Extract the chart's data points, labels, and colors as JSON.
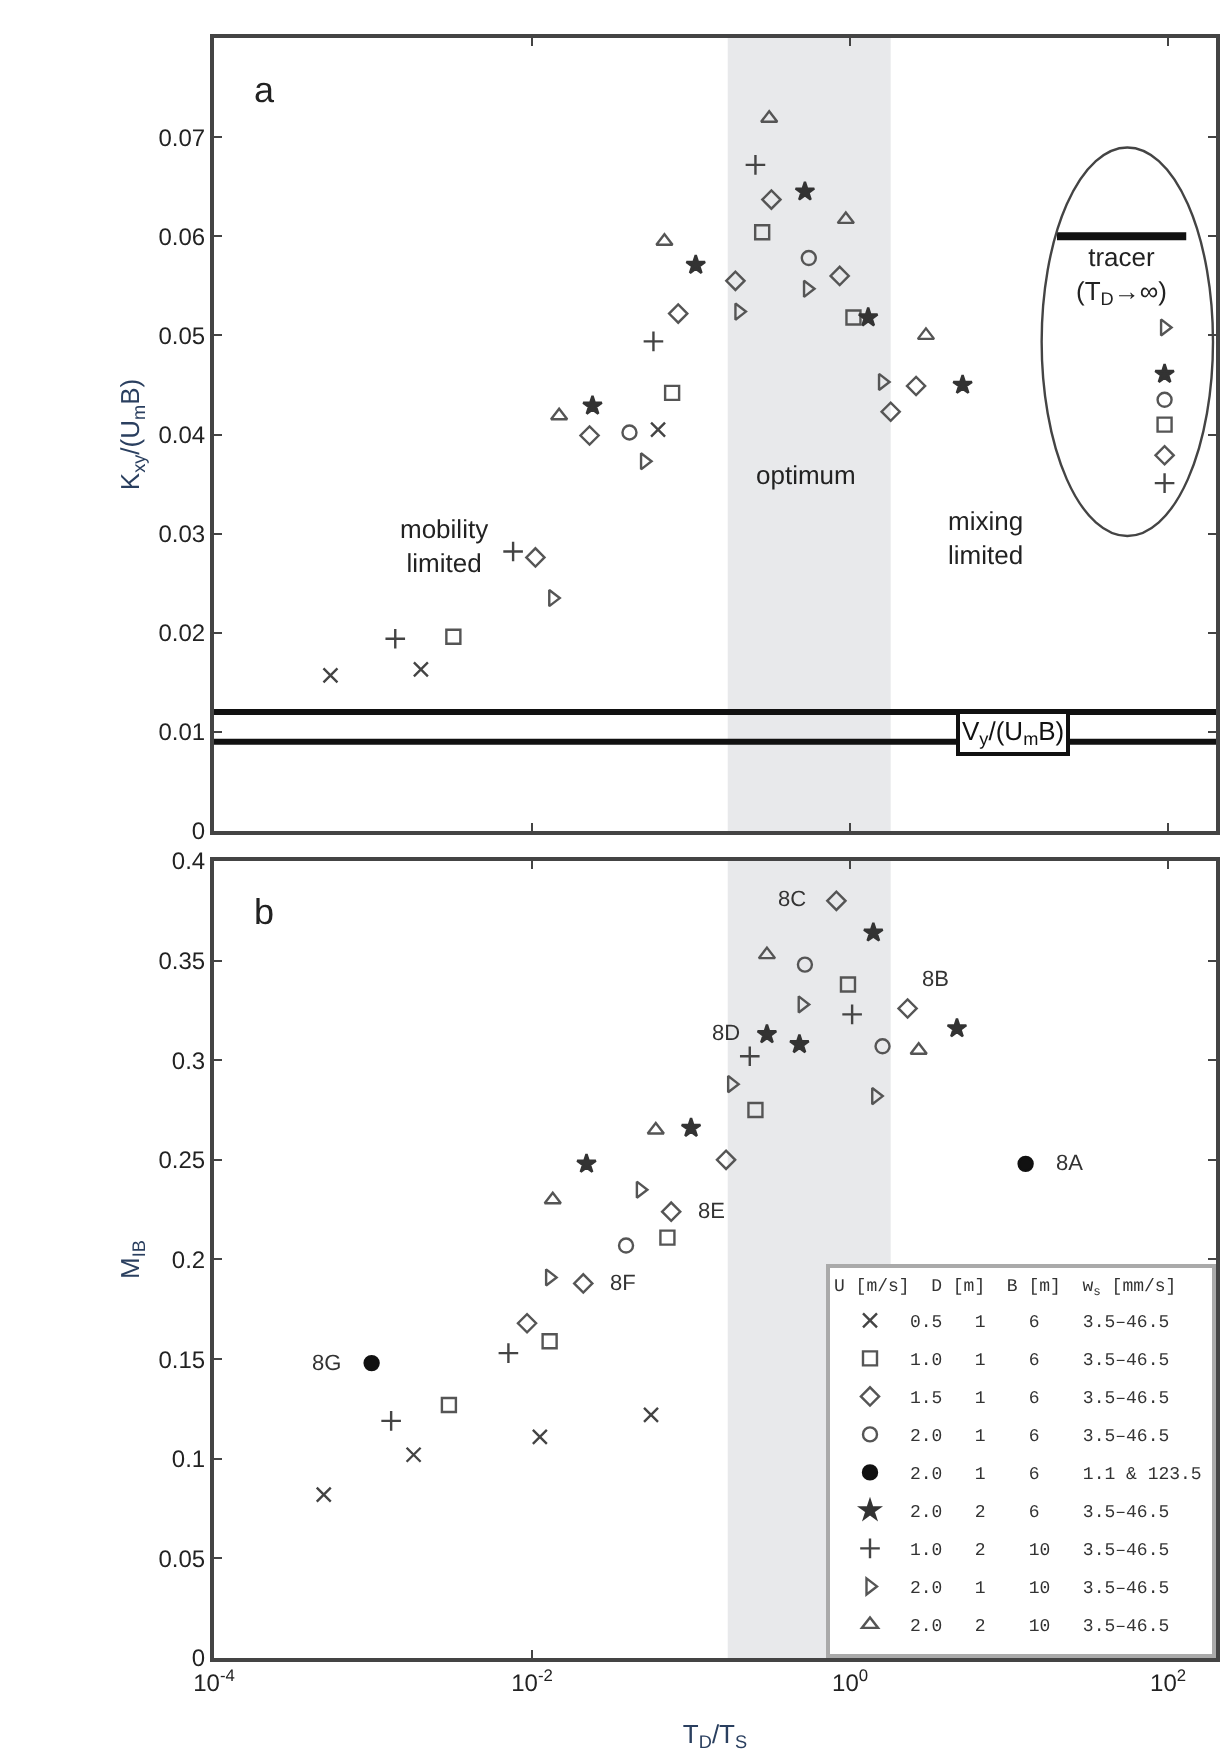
{
  "chart_data": [
    {
      "type": "scatter",
      "ylabel": "K$_{xy}$/(U$_{m}$B)",
      "xlim": [
        0.0001,
        200
      ],
      "xticks": [
        {
          "value": 0.0001,
          "label": "10$^{-4}$"
        },
        {
          "value": 0.01,
          "label": "10$^{-2}$"
        },
        {
          "value": 1,
          "label": "10$^{0}$"
        },
        {
          "value": 100,
          "label": "10$^{2}$"
        }
      ],
      "log": "x",
      "ylim": [
        0,
        0.08
      ],
      "yticks": [
        0,
        0.01,
        0.02,
        0.03,
        0.04,
        0.05,
        0.06,
        0.07
      ],
      "tick_labels": "y",
      "grid": false,
      "legend": false,
      "bands": [
        {
          "axis": "x",
          "from": 0.17,
          "to": 1.8,
          "color": "#e8e9eb"
        }
      ],
      "ref_lines": [
        {
          "axis": "y",
          "value": 0.012,
          "color": "#111111"
        },
        {
          "axis": "y",
          "value": 0.009,
          "color": "#111111",
          "label": "V$_{y}$/(U$_{m}$B)"
        }
      ],
      "annotations": [
        "a",
        "mobility\nlimited",
        "optimum",
        "mixing\nlimited",
        "tracer\n(T$_{D}$→∞)"
      ],
      "series": [
        {
          "type": "scatter",
          "marker": "x",
          "color": "#444444",
          "x": [
            0.00054,
            0.002,
            0.062
          ],
          "values": [
            0.0157,
            0.0163,
            0.0405
          ]
        },
        {
          "type": "scatter",
          "marker": "square",
          "color": "#555555",
          "x": [
            0.0032,
            0.076,
            0.28,
            1.05,
            95
          ],
          "values": [
            0.0196,
            0.0442,
            0.0604,
            0.0518,
            0.041
          ]
        },
        {
          "type": "scatter",
          "marker": "diamond",
          "color": "#555555",
          "x": [
            0.0105,
            0.023,
            0.083,
            0.19,
            0.32,
            0.86,
            1.8,
            2.6,
            95
          ],
          "values": [
            0.0276,
            0.0399,
            0.0522,
            0.0555,
            0.0637,
            0.056,
            0.0423,
            0.0449,
            0.0379
          ]
        },
        {
          "type": "scatter",
          "marker": "circle",
          "color": "#555555",
          "x": [
            0.041,
            0.55,
            95
          ],
          "values": [
            0.0402,
            0.0578,
            0.0435
          ]
        },
        {
          "type": "scatter",
          "marker": "star",
          "color": "#333333",
          "x": [
            0.024,
            0.107,
            0.52,
            1.3,
            5.1,
            95
          ],
          "values": [
            0.0429,
            0.0571,
            0.0645,
            0.0518,
            0.045,
            0.0461
          ]
        },
        {
          "type": "scatter",
          "marker": "cross",
          "color": "#444444",
          "x": [
            0.00138,
            0.0076,
            0.058,
            0.254,
            95
          ],
          "values": [
            0.0194,
            0.0282,
            0.0494,
            0.0672,
            0.0351
          ]
        },
        {
          "type": "scatter",
          "marker": "triangle-right",
          "color": "#555555",
          "x": [
            0.0135,
            0.051,
            0.2,
            0.54,
            1.6,
            95
          ],
          "values": [
            0.0235,
            0.0373,
            0.0524,
            0.0547,
            0.0453,
            0.0508
          ]
        },
        {
          "type": "scatter",
          "marker": "triangle",
          "color": "#555555",
          "x": [
            0.0148,
            0.068,
            0.31,
            0.94,
            3.0
          ],
          "values": [
            0.0419,
            0.0595,
            0.0719,
            0.0617,
            0.05
          ]
        },
        {
          "type": "line",
          "marker": "none",
          "color": "#111111",
          "x": [
            20,
            130
          ],
          "values": [
            0.06,
            0.06
          ]
        }
      ]
    },
    {
      "type": "scatter",
      "xlabel": "T$_{D}$/T$_{S}$",
      "ylabel": "M$_{IB}$",
      "xlim": [
        0.0001,
        200
      ],
      "xticks": [
        {
          "value": 0.0001,
          "label": "10$^{-4}$"
        },
        {
          "value": 0.01,
          "label": "10$^{-2}$"
        },
        {
          "value": 1,
          "label": "10$^{0}$"
        },
        {
          "value": 100,
          "label": "10$^{2}$"
        }
      ],
      "log": "x",
      "ylim": [
        0,
        0.4
      ],
      "yticks": [
        0,
        0.05,
        0.1,
        0.15,
        0.2,
        0.25,
        0.3,
        0.35,
        0.4
      ],
      "grid": false,
      "legend": "bottom right",
      "legend_title": "U [m/s]  D [m]  B [m]  w$_{s}$ [mm/s]",
      "bands": [
        {
          "axis": "x",
          "from": 0.17,
          "to": 1.8,
          "color": "#e8e9eb"
        }
      ],
      "annotations": [
        "b",
        {
          "text": "8C",
          "x": 0.82,
          "y": 0.38
        },
        {
          "text": "8B",
          "x": 2.3,
          "y": 0.326
        },
        {
          "text": "8D",
          "x": 0.3,
          "y": 0.313
        },
        {
          "text": "8E",
          "x": 0.075,
          "y": 0.224
        },
        {
          "text": "8F",
          "x": 0.021,
          "y": 0.188
        },
        {
          "text": "8G",
          "x": 0.00098,
          "y": 0.148
        },
        {
          "text": "8A",
          "x": 12.7,
          "y": 0.248
        }
      ],
      "series": [
        {
          "type": "scatter",
          "marker": "x",
          "color": "#444444",
          "name": "0.5   1    6    3.5–46.5",
          "x": [
            0.00049,
            0.0018,
            0.0112,
            0.056
          ],
          "values": [
            0.082,
            0.102,
            0.111,
            0.122
          ]
        },
        {
          "type": "scatter",
          "marker": "square",
          "color": "#555555",
          "name": "1.0   1    6    3.5–46.5",
          "x": [
            0.003,
            0.0129,
            0.071,
            0.254,
            0.97
          ],
          "values": [
            0.127,
            0.159,
            0.211,
            0.275,
            0.338
          ]
        },
        {
          "type": "scatter",
          "marker": "diamond",
          "color": "#555555",
          "name": "1.5   1    6    3.5–46.5",
          "x": [
            0.0093,
            0.021,
            0.075,
            0.166,
            0.82,
            2.3
          ],
          "values": [
            0.168,
            0.188,
            0.224,
            0.25,
            0.38,
            0.326
          ]
        },
        {
          "type": "scatter",
          "marker": "circle",
          "color": "#555555",
          "name": "2.0   1    6    3.5–46.5",
          "x": [
            0.039,
            0.52,
            1.6
          ],
          "values": [
            0.207,
            0.348,
            0.307
          ]
        },
        {
          "type": "scatter",
          "marker": "dot",
          "color": "#111111",
          "name": "2.0   1    6    1.1 & 123.5",
          "x": [
            0.00098,
            12.7
          ],
          "values": [
            0.148,
            0.248
          ]
        },
        {
          "type": "scatter",
          "marker": "star",
          "color": "#333333",
          "name": "2.0   2    6    3.5–46.5",
          "x": [
            0.022,
            0.1,
            0.3,
            0.48,
            1.4,
            4.7
          ],
          "values": [
            0.248,
            0.266,
            0.313,
            0.308,
            0.364,
            0.316
          ]
        },
        {
          "type": "scatter",
          "marker": "cross",
          "color": "#444444",
          "name": "1.0   2    10   3.5–46.5",
          "x": [
            0.0013,
            0.0071,
            0.234,
            1.03
          ],
          "values": [
            0.119,
            0.153,
            0.302,
            0.323
          ]
        },
        {
          "type": "scatter",
          "marker": "triangle-right",
          "color": "#555555",
          "name": "2.0   1    10   3.5–46.5",
          "x": [
            0.0129,
            0.048,
            0.18,
            0.5,
            1.45
          ],
          "values": [
            0.191,
            0.235,
            0.288,
            0.328,
            0.282
          ]
        },
        {
          "type": "scatter",
          "marker": "triangle",
          "color": "#555555",
          "name": "2.0   2    10   3.5–46.5",
          "x": [
            0.0135,
            0.06,
            0.3,
            2.7
          ],
          "values": [
            0.23,
            0.265,
            0.353,
            0.305
          ]
        }
      ]
    }
  ]
}
